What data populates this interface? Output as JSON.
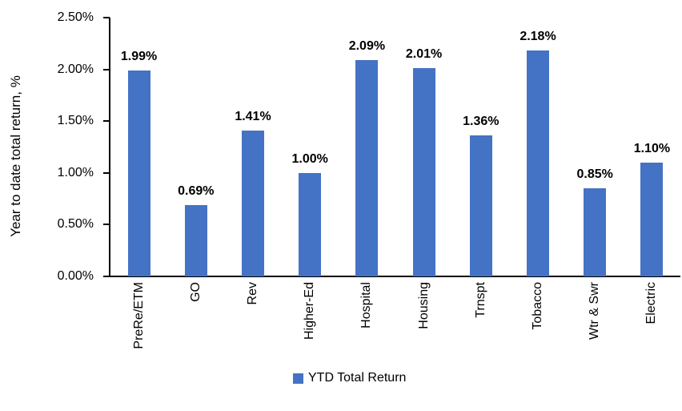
{
  "chart_data": {
    "type": "bar",
    "title": "",
    "xlabel": "",
    "ylabel": "Year to date total return, %",
    "categories": [
      "PreRe/ETM",
      "GO",
      "Rev",
      "Higher-Ed",
      "Hospital",
      "Housing",
      "Trnspt",
      "Tobacco",
      "Wtr & Swr",
      "Electric"
    ],
    "values": [
      1.99,
      0.69,
      1.41,
      1.0,
      2.09,
      2.01,
      1.36,
      2.18,
      0.85,
      1.1
    ],
    "data_labels": [
      "1.99%",
      "0.69%",
      "1.41%",
      "1.00%",
      "2.09%",
      "2.01%",
      "1.36%",
      "2.18%",
      "0.85%",
      "1.10%"
    ],
    "ylim": [
      0,
      2.5
    ],
    "ytick_labels": [
      "0.00%",
      "0.50%",
      "1.00%",
      "1.50%",
      "2.00%",
      "2.50%"
    ],
    "ytick_values": [
      0.0,
      0.5,
      1.0,
      1.5,
      2.0,
      2.5
    ],
    "grid": false,
    "legend": {
      "position": "bottom",
      "entries": [
        {
          "label": "YTD Total Return",
          "color": "#4472C4"
        }
      ]
    },
    "bar_color": "#4472C4"
  },
  "colors": {
    "bar": "#4472C4",
    "axis": "#000000",
    "text": "#000000",
    "background": "#FFFFFF"
  }
}
